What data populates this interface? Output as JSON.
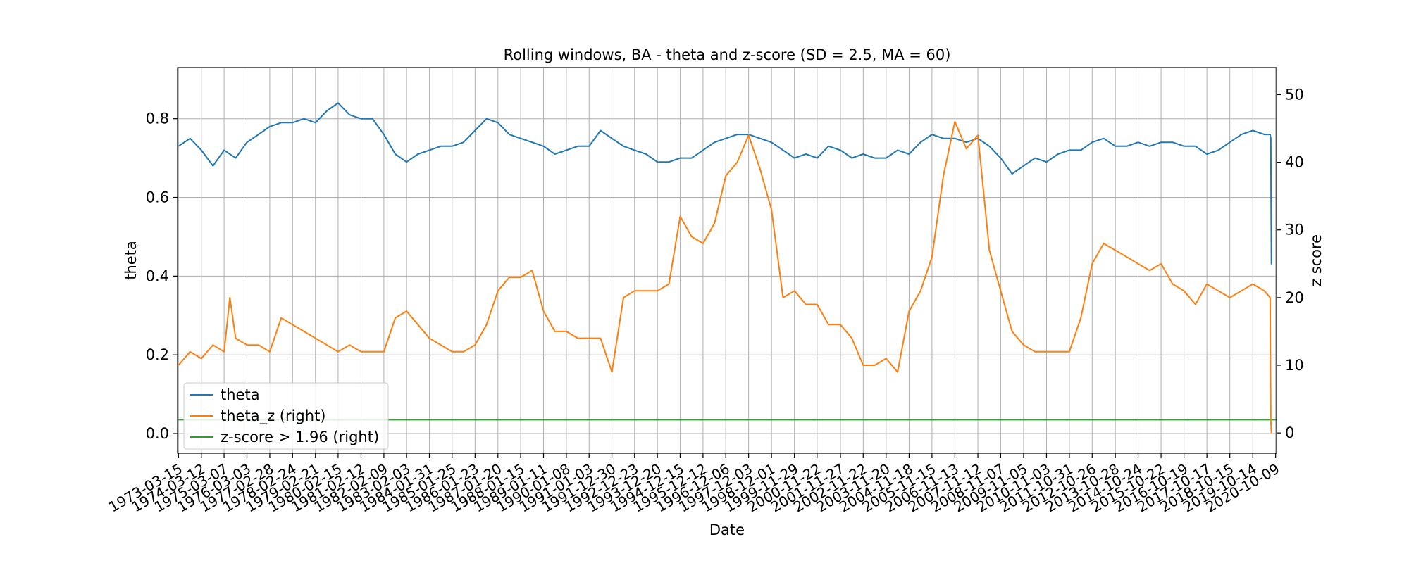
{
  "chart_data": {
    "type": "line",
    "title": "Rolling windows, BA - theta and z-score (SD = 2.5, MA = 60)",
    "xlabel": "Date",
    "ylabel": "theta",
    "ylabel_right": "z score",
    "ylim": [
      -0.05,
      0.93
    ],
    "ylim_right": [
      -3,
      54
    ],
    "yticks": [
      0.0,
      0.2,
      0.4,
      0.6,
      0.8
    ],
    "yticks_right": [
      0,
      10,
      20,
      30,
      40,
      50
    ],
    "grid": true,
    "legend_position": "lower-left",
    "x_ticks": [
      "1973-03-15",
      "1974-03-12",
      "1975-03-07",
      "1976-03-03",
      "1977-02-28",
      "1978-02-24",
      "1979-02-21",
      "1980-02-15",
      "1981-02-12",
      "1982-02-09",
      "1983-02-03",
      "1984-01-31",
      "1985-01-25",
      "1986-01-23",
      "1987-01-20",
      "1988-01-15",
      "1989-01-11",
      "1990-01-08",
      "1991-01-03",
      "1991-12-30",
      "1992-12-23",
      "1993-12-20",
      "1994-12-15",
      "1995-12-12",
      "1996-12-06",
      "1997-12-03",
      "1998-12-01",
      "1999-11-29",
      "2000-11-22",
      "2001-11-27",
      "2002-11-22",
      "2003-11-20",
      "2004-11-18",
      "2005-11-15",
      "2006-11-13",
      "2007-11-12",
      "2008-11-07",
      "2009-11-05",
      "2010-11-03",
      "2011-10-31",
      "2012-10-26",
      "2013-10-28",
      "2014-10-24",
      "2015-10-22",
      "2016-10-19",
      "2017-10-17",
      "2018-10-15",
      "2019-10-14",
      "2020-10-09"
    ],
    "series": [
      {
        "name": "theta",
        "axis": "left",
        "color": "#1f77b4",
        "x": [
          "1973-03-15",
          "1973-09-15",
          "1974-03-12",
          "1974-09-12",
          "1975-03-07",
          "1975-09-07",
          "1976-03-03",
          "1976-09-03",
          "1977-02-28",
          "1977-08-28",
          "1978-02-24",
          "1978-08-24",
          "1979-02-21",
          "1979-08-21",
          "1980-02-15",
          "1980-08-15",
          "1981-02-12",
          "1981-08-12",
          "1982-02-09",
          "1982-08-09",
          "1983-02-03",
          "1983-08-03",
          "1984-01-31",
          "1984-07-31",
          "1985-01-25",
          "1985-07-25",
          "1986-01-23",
          "1986-07-23",
          "1987-01-20",
          "1987-07-20",
          "1988-01-15",
          "1988-07-15",
          "1989-01-11",
          "1989-07-11",
          "1990-01-08",
          "1990-07-08",
          "1991-01-03",
          "1991-07-03",
          "1991-12-30",
          "1992-06-30",
          "1992-12-23",
          "1993-06-23",
          "1993-12-20",
          "1994-06-20",
          "1994-12-15",
          "1995-06-15",
          "1995-12-12",
          "1996-06-12",
          "1996-12-06",
          "1997-06-06",
          "1997-12-03",
          "1998-06-03",
          "1998-12-01",
          "1999-06-01",
          "1999-11-29",
          "2000-05-29",
          "2000-11-22",
          "2001-05-22",
          "2001-11-27",
          "2002-05-27",
          "2002-11-22",
          "2003-05-22",
          "2003-11-20",
          "2004-05-20",
          "2004-11-18",
          "2005-05-18",
          "2005-11-15",
          "2006-05-15",
          "2006-11-13",
          "2007-05-13",
          "2007-11-12",
          "2008-05-12",
          "2008-11-07",
          "2009-05-07",
          "2009-11-05",
          "2010-05-05",
          "2010-11-03",
          "2011-05-03",
          "2011-10-31",
          "2012-04-30",
          "2012-10-26",
          "2013-04-26",
          "2013-10-28",
          "2014-04-28",
          "2014-10-24",
          "2015-04-24",
          "2015-10-22",
          "2016-04-22",
          "2016-10-19",
          "2017-04-19",
          "2017-10-17",
          "2018-04-17",
          "2018-10-15",
          "2019-04-15",
          "2019-10-14",
          "2020-04-14",
          "2020-07-14",
          "2020-07-24",
          "2020-08-03"
        ],
        "y": [
          0.73,
          0.75,
          0.72,
          0.68,
          0.72,
          0.7,
          0.74,
          0.76,
          0.78,
          0.79,
          0.79,
          0.8,
          0.79,
          0.82,
          0.84,
          0.81,
          0.8,
          0.8,
          0.76,
          0.71,
          0.69,
          0.71,
          0.72,
          0.73,
          0.73,
          0.74,
          0.77,
          0.8,
          0.79,
          0.76,
          0.75,
          0.74,
          0.73,
          0.71,
          0.72,
          0.73,
          0.73,
          0.77,
          0.75,
          0.73,
          0.72,
          0.71,
          0.69,
          0.69,
          0.7,
          0.7,
          0.72,
          0.74,
          0.75,
          0.76,
          0.76,
          0.75,
          0.74,
          0.72,
          0.7,
          0.71,
          0.7,
          0.73,
          0.72,
          0.7,
          0.71,
          0.7,
          0.7,
          0.72,
          0.71,
          0.74,
          0.76,
          0.75,
          0.75,
          0.74,
          0.75,
          0.73,
          0.7,
          0.66,
          0.68,
          0.7,
          0.69,
          0.71,
          0.72,
          0.72,
          0.74,
          0.75,
          0.73,
          0.73,
          0.74,
          0.73,
          0.74,
          0.74,
          0.73,
          0.73,
          0.71,
          0.72,
          0.74,
          0.76,
          0.77,
          0.76,
          0.76,
          0.75,
          0.43
        ]
      },
      {
        "name": "theta_z (right)",
        "axis": "right",
        "color": "#ff7f0e",
        "x": [
          "1973-03-15",
          "1973-09-15",
          "1974-03-12",
          "1974-09-12",
          "1975-03-07",
          "1975-06-07",
          "1975-09-07",
          "1976-03-03",
          "1976-09-03",
          "1977-02-28",
          "1977-08-28",
          "1978-02-24",
          "1978-08-24",
          "1979-02-21",
          "1979-08-21",
          "1980-02-15",
          "1980-08-15",
          "1981-02-12",
          "1981-08-12",
          "1982-02-09",
          "1982-08-09",
          "1983-02-03",
          "1983-08-03",
          "1984-01-31",
          "1984-07-31",
          "1985-01-25",
          "1985-07-25",
          "1986-01-23",
          "1986-07-23",
          "1987-01-20",
          "1987-07-20",
          "1988-01-15",
          "1988-07-15",
          "1989-01-11",
          "1989-07-11",
          "1990-01-08",
          "1990-07-08",
          "1991-01-03",
          "1991-07-03",
          "1991-12-30",
          "1992-06-30",
          "1992-12-23",
          "1993-06-23",
          "1993-12-20",
          "1994-06-20",
          "1994-12-15",
          "1995-06-15",
          "1995-12-12",
          "1996-06-12",
          "1996-12-06",
          "1997-06-06",
          "1997-12-03",
          "1998-06-03",
          "1998-12-01",
          "1999-06-01",
          "1999-11-29",
          "2000-05-29",
          "2000-11-22",
          "2001-05-22",
          "2001-11-27",
          "2002-05-27",
          "2002-11-22",
          "2003-05-22",
          "2003-11-20",
          "2004-05-20",
          "2004-11-18",
          "2005-05-18",
          "2005-11-15",
          "2006-05-15",
          "2006-11-13",
          "2007-05-13",
          "2007-11-12",
          "2008-05-12",
          "2008-11-07",
          "2009-05-07",
          "2009-11-05",
          "2010-05-05",
          "2010-11-03",
          "2011-05-03",
          "2011-10-31",
          "2012-04-30",
          "2012-10-26",
          "2013-04-26",
          "2013-10-28",
          "2014-04-28",
          "2014-10-24",
          "2015-04-24",
          "2015-10-22",
          "2016-04-22",
          "2016-10-19",
          "2017-04-19",
          "2017-10-17",
          "2018-04-17",
          "2018-10-15",
          "2019-04-15",
          "2019-10-14",
          "2020-04-14",
          "2020-07-14",
          "2020-07-24",
          "2020-08-03"
        ],
        "y": [
          10,
          12,
          11,
          13,
          12,
          20,
          14,
          13,
          13,
          12,
          17,
          16,
          15,
          14,
          13,
          12,
          13,
          12,
          12,
          12,
          17,
          18,
          16,
          14,
          13,
          12,
          12,
          13,
          16,
          21,
          23,
          23,
          24,
          18,
          15,
          15,
          14,
          14,
          14,
          9,
          20,
          21,
          21,
          21,
          22,
          32,
          29,
          28,
          31,
          38,
          40,
          44,
          39,
          33,
          20,
          21,
          19,
          19,
          16,
          16,
          14,
          10,
          10,
          11,
          9,
          18,
          21,
          26,
          38,
          46,
          42,
          44,
          27,
          21,
          15,
          13,
          12,
          12,
          12,
          12,
          17,
          25,
          28,
          27,
          26,
          25,
          24,
          25,
          22,
          21,
          19,
          22,
          21,
          20,
          21,
          22,
          21,
          20,
          2,
          0
        ]
      }
    ],
    "reference_lines": [
      {
        "name": "z-score > 1.96 (right)",
        "axis": "right",
        "value": 1.96,
        "color": "#2ca02c"
      }
    ],
    "legend": [
      "theta",
      "theta_z (right)",
      "z-score > 1.96 (right)"
    ]
  }
}
